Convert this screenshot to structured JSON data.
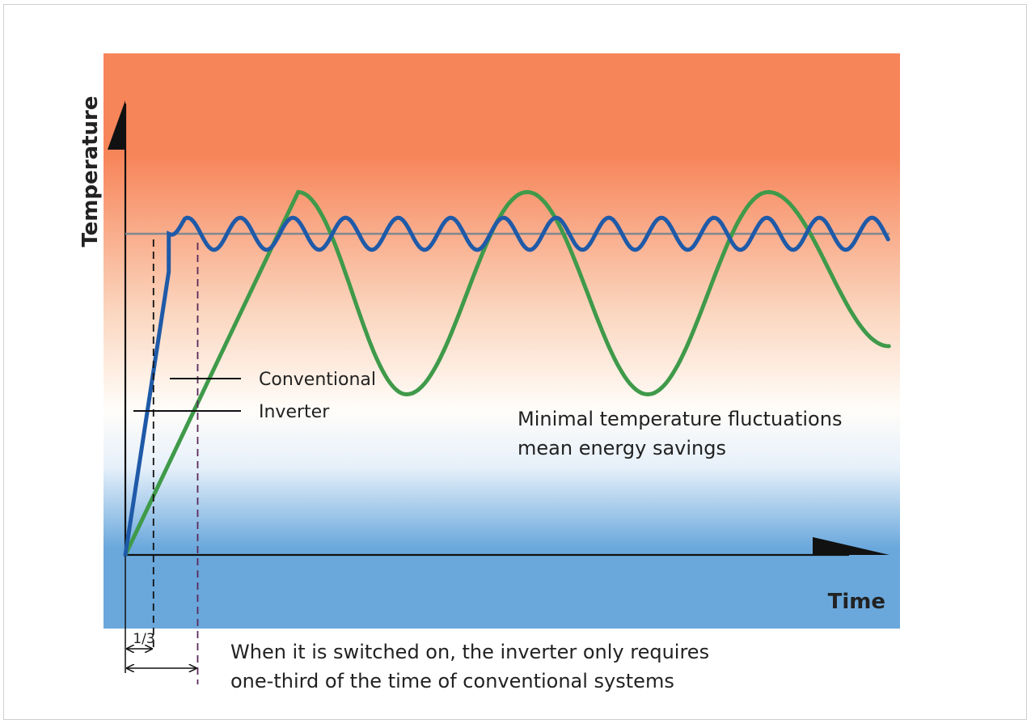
{
  "chart_data": {
    "type": "line",
    "title": "",
    "xlabel": "Time",
    "ylabel": "Temperature",
    "grid": false,
    "series": [
      {
        "name": "Conventional",
        "color": "#3f9a4a",
        "points": [
          [
            0,
            0
          ],
          [
            4.3,
            1.13
          ],
          [
            7,
            0.5
          ],
          [
            10,
            1.13
          ],
          [
            13,
            0.5
          ],
          [
            16,
            1.13
          ],
          [
            19,
            0.65
          ]
        ]
      },
      {
        "name": "Inverter",
        "color": "#1f5aa8",
        "points": [
          [
            0,
            0
          ],
          [
            1.5,
            0.98
          ],
          [
            19,
            1.0
          ]
        ]
      }
    ],
    "reference_line": {
      "y": 1.0,
      "color": "#808890"
    },
    "time_marks": {
      "inverter_ready": 0.7,
      "conventional_ready": 1.8,
      "fraction_label": "1/3"
    },
    "annotations": {
      "savings": [
        "Minimal temperature fluctuations",
        "mean energy savings"
      ],
      "startup": [
        "When it is switched on, the inverter only requires",
        "one-third of the time of conventional systems"
      ]
    },
    "colors": {
      "hot": "#f7855a",
      "neutral": "#fffdf9",
      "cold": "#6aa8dc"
    }
  }
}
